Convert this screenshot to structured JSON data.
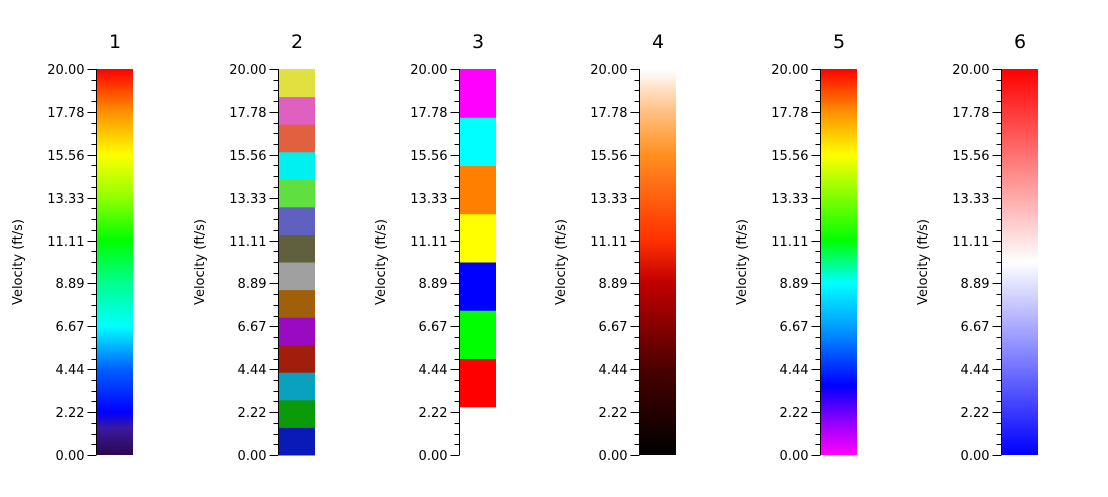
{
  "chart_data": {
    "type": "colorbar",
    "ylabel": "Velocity (ft/s)",
    "ylim": [
      0,
      20
    ],
    "tick_labels": [
      "0.00",
      "2.22",
      "4.44",
      "6.67",
      "8.89",
      "11.11",
      "13.33",
      "15.56",
      "17.78",
      "20.00"
    ],
    "tick_values": [
      0,
      2.22,
      4.44,
      6.67,
      8.89,
      11.11,
      13.33,
      15.56,
      17.78,
      20
    ],
    "colorbars": [
      {
        "title": "1",
        "kind": "gradient",
        "range": [
          0,
          20
        ],
        "stops": [
          {
            "v": 0,
            "color": "#2a0850"
          },
          {
            "v": 1.4,
            "color": "#3a1aa0"
          },
          {
            "v": 2.2,
            "color": "#0000ff"
          },
          {
            "v": 4.44,
            "color": "#0060ff"
          },
          {
            "v": 6.67,
            "color": "#00ffff"
          },
          {
            "v": 8.89,
            "color": "#00ff90"
          },
          {
            "v": 11.11,
            "color": "#00ff00"
          },
          {
            "v": 13.33,
            "color": "#90ff00"
          },
          {
            "v": 15.56,
            "color": "#ffff00"
          },
          {
            "v": 17.78,
            "color": "#ff9000"
          },
          {
            "v": 20,
            "color": "#ff0000"
          }
        ]
      },
      {
        "title": "2",
        "kind": "discrete",
        "range": [
          0,
          20
        ],
        "segments": [
          {
            "from": 0,
            "to": 1.43,
            "color": "#0a1ab8"
          },
          {
            "from": 1.43,
            "to": 2.86,
            "color": "#0a9a0a"
          },
          {
            "from": 2.86,
            "to": 4.29,
            "color": "#0aa0c0"
          },
          {
            "from": 4.29,
            "to": 5.71,
            "color": "#a01e0a"
          },
          {
            "from": 5.71,
            "to": 7.14,
            "color": "#9a0ac0"
          },
          {
            "from": 7.14,
            "to": 8.57,
            "color": "#a0600a"
          },
          {
            "from": 8.57,
            "to": 10.0,
            "color": "#a0a0a0"
          },
          {
            "from": 10.0,
            "to": 11.43,
            "color": "#60603e"
          },
          {
            "from": 11.43,
            "to": 12.86,
            "color": "#6060c0"
          },
          {
            "from": 12.86,
            "to": 14.29,
            "color": "#60e040"
          },
          {
            "from": 14.29,
            "to": 15.71,
            "color": "#00f0f0"
          },
          {
            "from": 15.71,
            "to": 17.14,
            "color": "#e06040"
          },
          {
            "from": 17.14,
            "to": 18.57,
            "color": "#e060c0"
          },
          {
            "from": 18.57,
            "to": 20,
            "color": "#e0e040"
          }
        ]
      },
      {
        "title": "3",
        "kind": "discrete",
        "range": [
          0,
          20
        ],
        "segments": [
          {
            "from": 2.5,
            "to": 5.0,
            "color": "#ff0000"
          },
          {
            "from": 5.0,
            "to": 7.5,
            "color": "#00ff00"
          },
          {
            "from": 7.5,
            "to": 10.0,
            "color": "#0000ff"
          },
          {
            "from": 10.0,
            "to": 12.5,
            "color": "#ffff00"
          },
          {
            "from": 12.5,
            "to": 15.0,
            "color": "#ff8000"
          },
          {
            "from": 15.0,
            "to": 17.5,
            "color": "#00ffff"
          },
          {
            "from": 17.5,
            "to": 20,
            "color": "#ff00ff"
          }
        ]
      },
      {
        "title": "4",
        "kind": "gradient",
        "range": [
          0,
          20
        ],
        "stops": [
          {
            "v": 0,
            "color": "#000000"
          },
          {
            "v": 4.44,
            "color": "#4a0000"
          },
          {
            "v": 8.89,
            "color": "#c00000"
          },
          {
            "v": 11.11,
            "color": "#ff3000"
          },
          {
            "v": 15.56,
            "color": "#ff9020"
          },
          {
            "v": 17.78,
            "color": "#ffc080"
          },
          {
            "v": 20,
            "color": "#ffffff"
          }
        ]
      },
      {
        "title": "5",
        "kind": "gradient",
        "range": [
          0,
          20
        ],
        "stops": [
          {
            "v": 0,
            "color": "#ff00ff"
          },
          {
            "v": 1.5,
            "color": "#a000ff"
          },
          {
            "v": 3.6,
            "color": "#0000ff"
          },
          {
            "v": 6.67,
            "color": "#00a0ff"
          },
          {
            "v": 8.89,
            "color": "#00ffff"
          },
          {
            "v": 11.11,
            "color": "#00ff00"
          },
          {
            "v": 15.56,
            "color": "#ffff00"
          },
          {
            "v": 17.78,
            "color": "#ff9000"
          },
          {
            "v": 20,
            "color": "#ff0000"
          }
        ]
      },
      {
        "title": "6",
        "kind": "gradient",
        "range": [
          0,
          20
        ],
        "stops": [
          {
            "v": 0,
            "color": "#0000ff"
          },
          {
            "v": 10,
            "color": "#ffffff"
          },
          {
            "v": 20,
            "color": "#ff0000"
          }
        ]
      }
    ]
  }
}
